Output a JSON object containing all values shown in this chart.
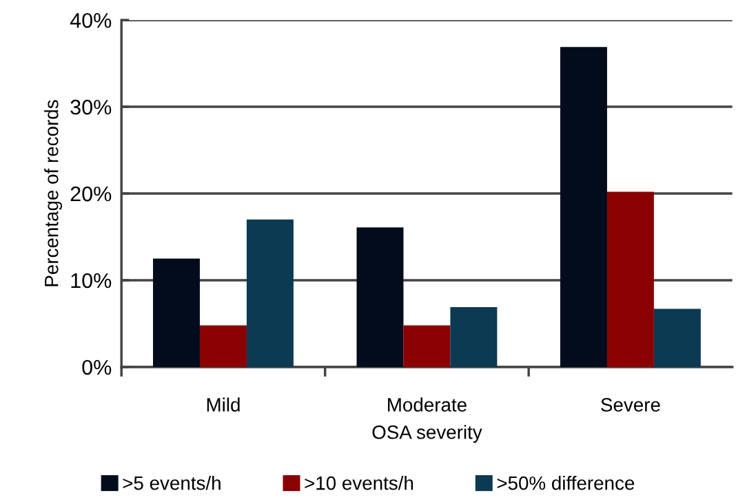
{
  "chart_data": {
    "type": "bar",
    "xlabel": "OSA severity",
    "ylabel": "Percentage of records",
    "categories": [
      "Mild",
      "Moderate",
      "Severe"
    ],
    "series": [
      {
        "name": ">5 events/h",
        "color": "#020c1c",
        "values": [
          12.5,
          16.1,
          36.9
        ]
      },
      {
        "name": ">10 events/h",
        "color": "#8b0000",
        "values": [
          4.8,
          4.8,
          20.2
        ]
      },
      {
        "name": ">50% difference",
        "color": "#0b3a52",
        "values": [
          17.0,
          6.9,
          6.7
        ]
      }
    ],
    "ylim": [
      0,
      40
    ],
    "yticks": [
      {
        "value": 0,
        "label": "0%"
      },
      {
        "value": 10,
        "label": "10%"
      },
      {
        "value": 20,
        "label": "20%"
      },
      {
        "value": 30,
        "label": "30%"
      },
      {
        "value": 40,
        "label": "40%"
      }
    ],
    "grid": "y",
    "legend": "bottom"
  }
}
